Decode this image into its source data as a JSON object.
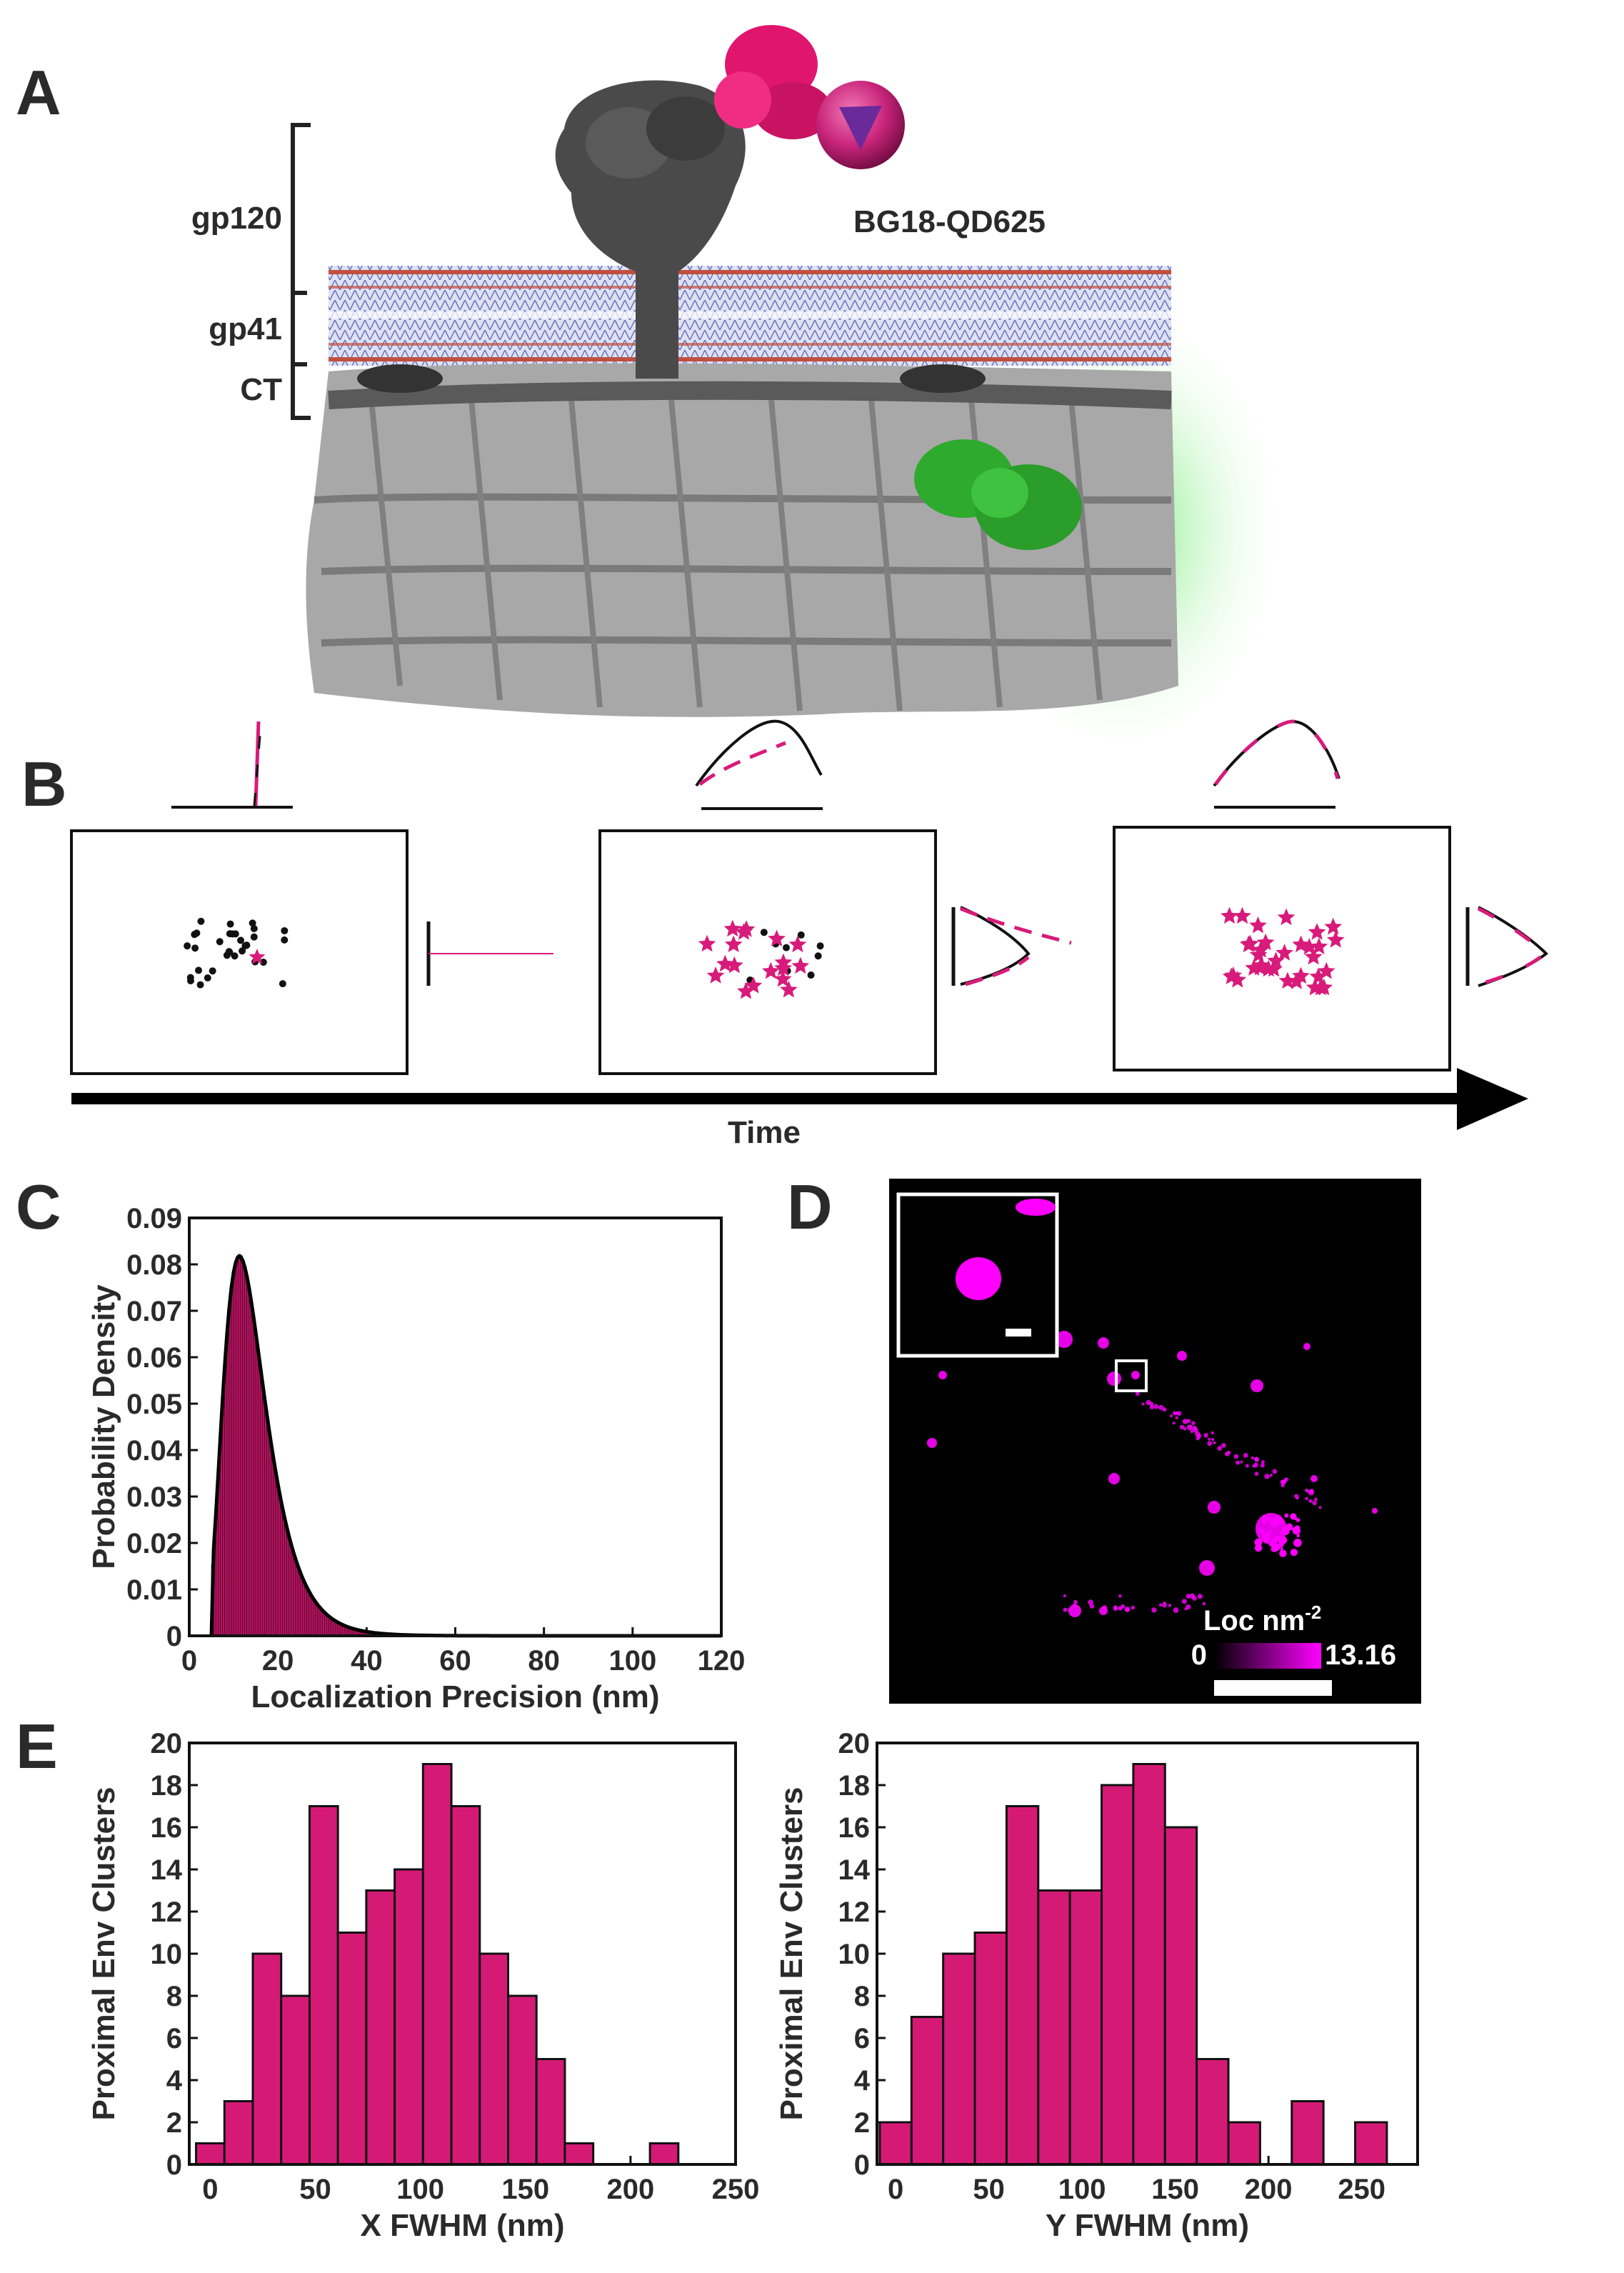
{
  "figure": {
    "panels": {
      "A": {
        "letter": "A",
        "labels": {
          "gp120": "gp120",
          "gp41": "gp41",
          "ct": "CT",
          "probe": "BG18-QD625"
        },
        "colors": {
          "env": "#444444",
          "matrix": "#9a9a9a",
          "antibody": "#e0156e",
          "membrane": "#5b64b0",
          "gfp": "#2eaa2e",
          "qdot": "#c8247a"
        }
      },
      "B": {
        "letter": "B",
        "time_label": "Time",
        "colors": {
          "points": "#111111",
          "localizations": "#d81b7a"
        }
      },
      "C": {
        "letter": "C"
      },
      "D": {
        "letter": "D",
        "colorbar_label": "Loc nm",
        "colorbar_exponent": "-2",
        "colorbar_min": "0",
        "colorbar_max": "13.16",
        "colors": {
          "background": "#000000",
          "signal": "#ff00ff"
        }
      },
      "E": {
        "letter": "E"
      }
    }
  },
  "chart_data": [
    {
      "type": "bar",
      "id": "C",
      "xlabel": "Localization Precision (nm)",
      "ylabel": "Probability Density",
      "xlim": [
        0,
        120
      ],
      "ylim": [
        0,
        0.09
      ],
      "xticks": [
        "0",
        "20",
        "40",
        "60",
        "80",
        "100",
        "120"
      ],
      "yticks": [
        "0",
        "0.01",
        "0.02",
        "0.03",
        "0.04",
        "0.05",
        "0.06",
        "0.07",
        "0.08",
        "0.09"
      ],
      "bin_width": 0.5,
      "peak": 0.082,
      "peak_at": 11,
      "bar_color": "#b3125e",
      "fit_color": "#000000"
    },
    {
      "type": "bar",
      "id": "E-x",
      "xlabel": "X FWHM (nm)",
      "ylabel": "Proximal Env Clusters",
      "xlim": [
        -10,
        250
      ],
      "ylim": [
        0,
        20
      ],
      "xticks": [
        "0",
        "50",
        "100",
        "150",
        "200",
        "250"
      ],
      "yticks": [
        "0",
        "2",
        "4",
        "6",
        "8",
        "10",
        "12",
        "14",
        "16",
        "18",
        "20"
      ],
      "bin_width": 13.5,
      "categories": [
        0,
        13.5,
        27,
        40.5,
        54,
        67.5,
        81,
        94.5,
        108,
        121.5,
        135,
        148.5,
        162,
        175.5,
        189,
        202.5,
        216
      ],
      "values": [
        1,
        3,
        10,
        8,
        17,
        11,
        13,
        14,
        19,
        17,
        10,
        8,
        5,
        1,
        0,
        0,
        1
      ],
      "bar_color": "#d51a76"
    },
    {
      "type": "bar",
      "id": "E-y",
      "xlabel": "Y FWHM (nm)",
      "ylabel": "Proximal Env Clusters",
      "xlim": [
        -10,
        280
      ],
      "ylim": [
        0,
        20
      ],
      "xticks": [
        "0",
        "50",
        "100",
        "150",
        "200",
        "250"
      ],
      "yticks": [
        "0",
        "2",
        "4",
        "6",
        "8",
        "10",
        "12",
        "14",
        "16",
        "18",
        "20"
      ],
      "bin_width": 17,
      "categories": [
        0,
        17,
        34,
        51,
        68,
        85,
        102,
        119,
        136,
        153,
        170,
        187,
        204,
        221,
        238,
        255
      ],
      "values": [
        2,
        7,
        10,
        11,
        17,
        13,
        13,
        18,
        19,
        16,
        5,
        2,
        0,
        3,
        0,
        2
      ],
      "bar_color": "#d51a76"
    }
  ]
}
